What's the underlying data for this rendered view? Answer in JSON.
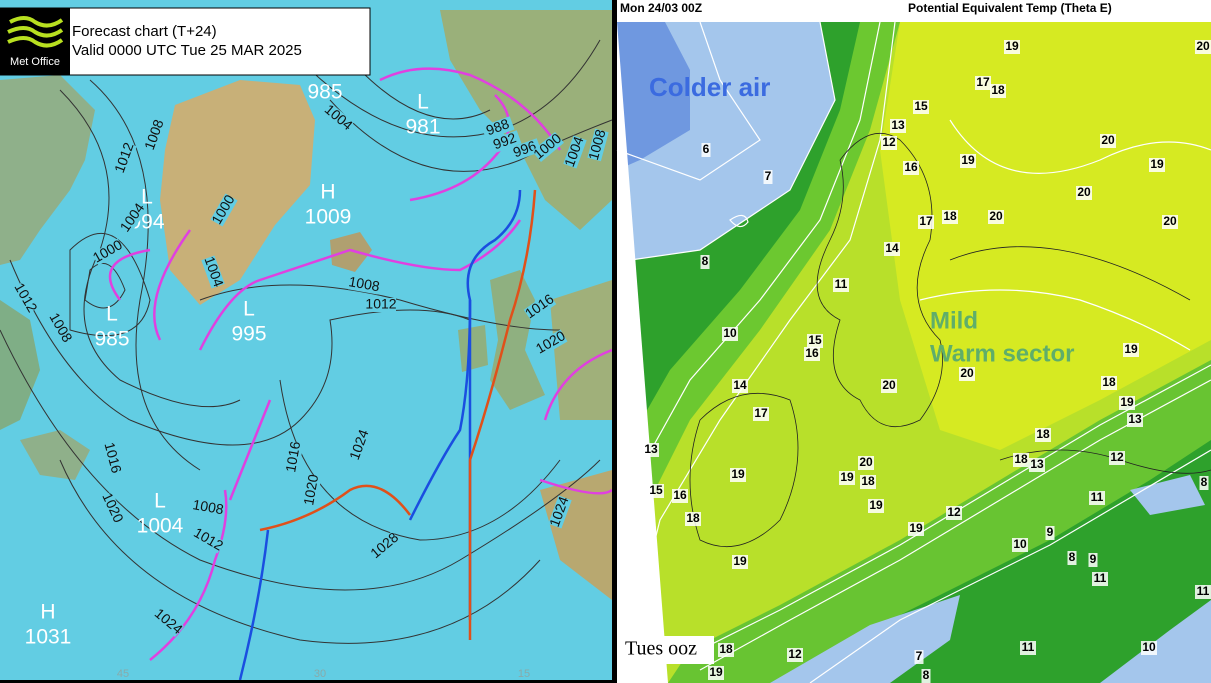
{
  "left_chart": {
    "logo": "Met Office",
    "title": "Forecast chart (T+24)",
    "valid": "Valid 0000 UTC Tue 25 MAR 2025",
    "centers": [
      {
        "value": 985
      },
      {
        "letter": "L",
        "value": 981
      },
      {
        "letter": "H",
        "value": 1009
      },
      {
        "letter": "L",
        "value": 994
      },
      {
        "letter": "L",
        "value": 985
      },
      {
        "letter": "L",
        "value": 995
      },
      {
        "letter": "L",
        "value": 1004
      },
      {
        "letter": "H",
        "value": 1031
      }
    ],
    "isobar_labels": [
      1008,
      1012,
      1004,
      1000,
      1000,
      1004,
      1004,
      1008,
      1012,
      1008,
      1012,
      988,
      992,
      996,
      1000,
      1004,
      1008,
      1016,
      1020,
      1016,
      1020,
      1016,
      1020,
      1024,
      1028,
      1024,
      1008,
      1012,
      1024
    ],
    "grid_labels": [
      45,
      30,
      15
    ]
  },
  "right_chart": {
    "date": "Mon 24/03 00Z",
    "title": "Potential Equivalent Temp (Theta E)",
    "annotations": [
      "Colder air",
      "Mild",
      "Warm sector"
    ],
    "footer": "Tues ooz",
    "contour_labels": [
      19,
      20,
      6,
      7,
      8,
      17,
      18,
      15,
      13,
      12,
      16,
      19,
      20,
      19,
      20,
      20,
      17,
      18,
      20,
      14,
      11,
      10,
      15,
      16,
      20,
      20,
      19,
      18,
      14,
      17,
      19,
      13,
      18,
      13,
      18,
      13,
      12,
      20,
      19,
      18,
      19,
      8,
      15,
      16,
      11,
      19,
      18,
      12,
      19,
      9,
      10,
      8,
      9,
      19,
      11,
      11,
      18,
      12,
      7,
      11,
      10,
      19,
      8
    ]
  }
}
